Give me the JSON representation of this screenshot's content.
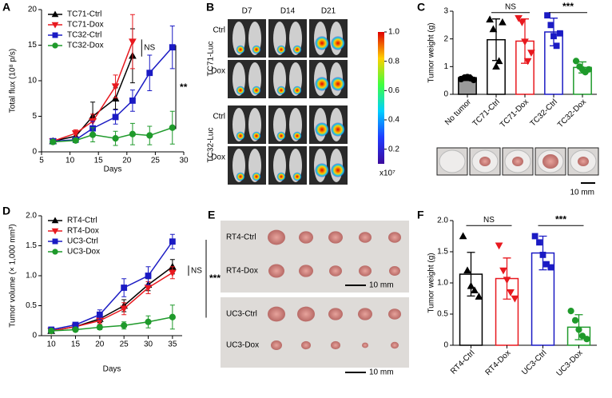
{
  "chart_data": [
    {
      "type": "line",
      "panel": "A",
      "xlabel": "Days",
      "ylabel": "Total flux (10⁸ p/s)",
      "xlim": [
        5,
        30
      ],
      "xticks": [
        5,
        10,
        15,
        20,
        25,
        30
      ],
      "ylim": [
        0,
        20
      ],
      "yticks": [
        0,
        5,
        10,
        15,
        20
      ],
      "series": [
        {
          "name": "TC71-Ctrl",
          "color": "#000000",
          "marker": "^",
          "x": [
            7,
            11,
            14,
            18,
            21
          ],
          "values": [
            1.5,
            2.2,
            5,
            7.5,
            13.5
          ],
          "errors": [
            0.3,
            0.5,
            2,
            1.5,
            3.8
          ]
        },
        {
          "name": "TC71-Dox",
          "color": "#e8191f",
          "marker": "v",
          "x": [
            7,
            11,
            14,
            18,
            21
          ],
          "values": [
            1.5,
            2.6,
            4.3,
            9.2,
            15.5
          ],
          "errors": [
            0.3,
            0.5,
            1,
            1.6,
            3.8
          ]
        },
        {
          "name": "TC32-Ctrl",
          "color": "#1b1bc4",
          "marker": "s",
          "x": [
            7,
            11,
            14,
            18,
            21,
            24,
            28
          ],
          "values": [
            1.5,
            1.7,
            3.3,
            4.9,
            7.2,
            11.1,
            14.7
          ],
          "errors": [
            0.3,
            0.3,
            1,
            1,
            1.5,
            2.5,
            3
          ]
        },
        {
          "name": "TC32-Dox",
          "color": "#1f9a2b",
          "marker": "o",
          "x": [
            7,
            11,
            14,
            18,
            21,
            24,
            28
          ],
          "values": [
            1.4,
            1.6,
            2.4,
            1.9,
            2.5,
            2.3,
            3.4
          ],
          "errors": [
            0.3,
            0.3,
            1,
            1,
            1.5,
            1.3,
            2.3
          ]
        }
      ],
      "annotations": [
        "NS",
        "**"
      ]
    },
    {
      "type": "bar",
      "panel": "C",
      "ylabel": "Tumor weight (g)",
      "ylim": [
        0,
        3
      ],
      "yticks": [
        0,
        1,
        2,
        3
      ],
      "categories": [
        "No tumor",
        "TC71-Ctrl",
        "TC71-Dox",
        "TC32-Ctrl",
        "TC32-Dox"
      ],
      "values": [
        0.6,
        1.97,
        1.92,
        2.25,
        0.97
      ],
      "errors": [
        0.1,
        0.75,
        0.8,
        0.5,
        0.2
      ],
      "colors": [
        "#000000",
        "#000000",
        "#e8191f",
        "#1b1bc4",
        "#1f9a2b"
      ],
      "fills": [
        "#9a9a9a",
        "#ffffff",
        "#ffffff",
        "#ffffff",
        "#ffffff"
      ],
      "markers": [
        "o",
        "^",
        "v",
        "s",
        "o"
      ],
      "points": [
        [
          0.55,
          0.6,
          0.62,
          0.58,
          0.52
        ],
        [
          2.7,
          2.35,
          1.0,
          1.2,
          2.6
        ],
        [
          2.75,
          2.6,
          1.9,
          1.2,
          1.5
        ],
        [
          2.85,
          2.5,
          2.1,
          1.75,
          2.2
        ],
        [
          1.2,
          1.0,
          0.9,
          0.8,
          0.9
        ]
      ],
      "annotations": [
        "NS",
        "***"
      ],
      "scale_label": "10 mm"
    },
    {
      "type": "line",
      "panel": "D",
      "xlabel": "Days",
      "ylabel": "Tumor volume (× 1,000 mm³)",
      "xlim": [
        8,
        37
      ],
      "xticks": [
        10,
        15,
        20,
        25,
        30,
        35
      ],
      "ylim": [
        0,
        2
      ],
      "yticks": [
        0,
        0.5,
        {
          "value": 1,
          "label": "1.0"
        },
        1.5,
        {
          "value": 2,
          "label": "2.0"
        }
      ],
      "series": [
        {
          "name": "RT4-Ctrl",
          "color": "#000000",
          "marker": "^",
          "x": [
            10,
            15,
            20,
            25,
            30,
            35
          ],
          "values": [
            0.08,
            0.15,
            0.28,
            0.5,
            0.85,
            1.15
          ],
          "errors": [
            0.02,
            0.03,
            0.06,
            0.1,
            0.1,
            0.12
          ]
        },
        {
          "name": "RT4-Dox",
          "color": "#e8191f",
          "marker": "v",
          "x": [
            10,
            15,
            20,
            25,
            30,
            35
          ],
          "values": [
            0.08,
            0.15,
            0.25,
            0.45,
            0.8,
            1.05
          ],
          "errors": [
            0.02,
            0.03,
            0.05,
            0.1,
            0.1,
            0.1
          ]
        },
        {
          "name": "UC3-Ctrl",
          "color": "#1b1bc4",
          "marker": "s",
          "x": [
            10,
            15,
            20,
            25,
            30,
            35
          ],
          "values": [
            0.1,
            0.18,
            0.35,
            0.8,
            1.0,
            1.57
          ],
          "errors": [
            0.02,
            0.04,
            0.08,
            0.15,
            0.15,
            0.12
          ]
        },
        {
          "name": "UC3-Dox",
          "color": "#1f9a2b",
          "marker": "o",
          "x": [
            10,
            15,
            20,
            25,
            30,
            35
          ],
          "values": [
            0.08,
            0.1,
            0.14,
            0.17,
            0.23,
            0.31
          ],
          "errors": [
            0.02,
            0.02,
            0.04,
            0.06,
            0.1,
            0.2
          ]
        }
      ],
      "annotations": [
        "NS",
        "***"
      ]
    },
    {
      "type": "bar",
      "panel": "F",
      "ylabel": "Tumor weight (g)",
      "ylim": [
        0,
        2
      ],
      "yticks": [
        0,
        0.5,
        {
          "value": 1,
          "label": "1.0"
        },
        1.5,
        {
          "value": 2,
          "label": "2.0"
        }
      ],
      "categories": [
        "RT4-Ctrl",
        "RT4-Dox",
        "UC3-Ctrl",
        "UC3-Dox"
      ],
      "values": [
        1.14,
        1.07,
        1.48,
        0.29
      ],
      "errors": [
        0.35,
        0.33,
        0.27,
        0.2
      ],
      "colors": [
        "#000000",
        "#e8191f",
        "#1b1bc4",
        "#1f9a2b"
      ],
      "fills": [
        "#ffffff",
        "#ffffff",
        "#ffffff",
        "#ffffff"
      ],
      "markers": [
        "^",
        "v",
        "s",
        "o"
      ],
      "points": [
        [
          1.75,
          1.2,
          0.95,
          0.88,
          0.78
        ],
        [
          1.6,
          1.2,
          1.05,
          0.85,
          0.75
        ],
        [
          1.75,
          1.65,
          1.45,
          1.3,
          1.25
        ],
        [
          0.55,
          0.4,
          0.25,
          0.15,
          0.1
        ]
      ],
      "annotations": [
        "NS",
        "***"
      ]
    }
  ],
  "panel_b": {
    "label": "B",
    "days": [
      "D7",
      "D14",
      "D21"
    ],
    "groups": [
      {
        "name": "TC71-Luc",
        "rows": [
          "Ctrl",
          "Dox"
        ]
      },
      {
        "name": "TC32-Luc",
        "rows": [
          "Ctrl",
          "Dox"
        ]
      }
    ],
    "colorbar": {
      "lim": [
        0.1,
        1
      ],
      "ticks": [
        {
          "value": 1,
          "label": "1.0"
        },
        0.8,
        0.6,
        0.4,
        0.2
      ],
      "unit": "x10⁷"
    }
  },
  "panel_e": {
    "label": "E",
    "rows": [
      "RT4-Ctrl",
      "RT4-Dox",
      "UC3-Ctrl",
      "UC3-Dox"
    ],
    "scale_labels": [
      "10 mm",
      "10 mm"
    ]
  }
}
